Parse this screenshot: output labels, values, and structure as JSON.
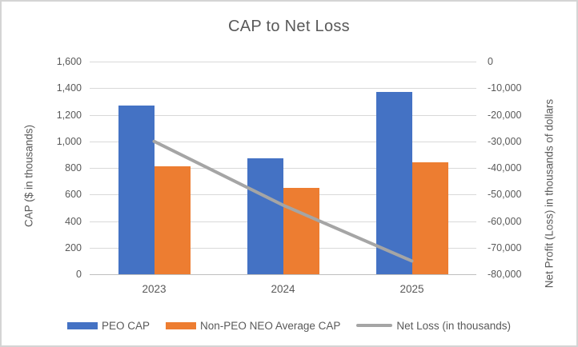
{
  "window": {
    "background": "#ffffff",
    "border_color": "#d4d4d4"
  },
  "chart_data": {
    "type": "combo",
    "title": "CAP to Net Loss",
    "categories": [
      "2023",
      "2024",
      "2025"
    ],
    "series": [
      {
        "name": "PEO CAP",
        "type": "bar",
        "axis": "left",
        "color": "#4472C4",
        "values": [
          1270,
          870,
          1370
        ]
      },
      {
        "name": "Non-PEO NEO Average CAP",
        "type": "bar",
        "axis": "left",
        "color": "#ED7D31",
        "values": [
          810,
          650,
          840
        ]
      },
      {
        "name": "Net Loss (in thousands)",
        "type": "line",
        "axis": "right",
        "color": "#A5A5A5",
        "values": [
          -30000,
          -54000,
          -75000
        ]
      }
    ],
    "left_axis": {
      "label": "CAP ($ in thousands)",
      "min": 0,
      "max": 1600,
      "tick_step": 200,
      "tick_labels_top_to_bottom": [
        "1,600",
        "1,400",
        "1,200",
        "1,000",
        "800",
        "600",
        "400",
        "200",
        "0"
      ]
    },
    "right_axis": {
      "label": "Net Profit (Loss) in thousands of dollars",
      "min": -80000,
      "max": 0,
      "tick_step": 10000,
      "tick_labels_top_to_bottom": [
        "0",
        "-10,000",
        "-20,000",
        "-30,000",
        "-40,000",
        "-50,000",
        "-60,000",
        "-70,000",
        "-80,000"
      ]
    },
    "gridlines": true,
    "legend_position": "bottom",
    "colors": {
      "text": "#595959",
      "gridline": "#D9D9D9",
      "axis_line": "#BFBFBF"
    }
  }
}
